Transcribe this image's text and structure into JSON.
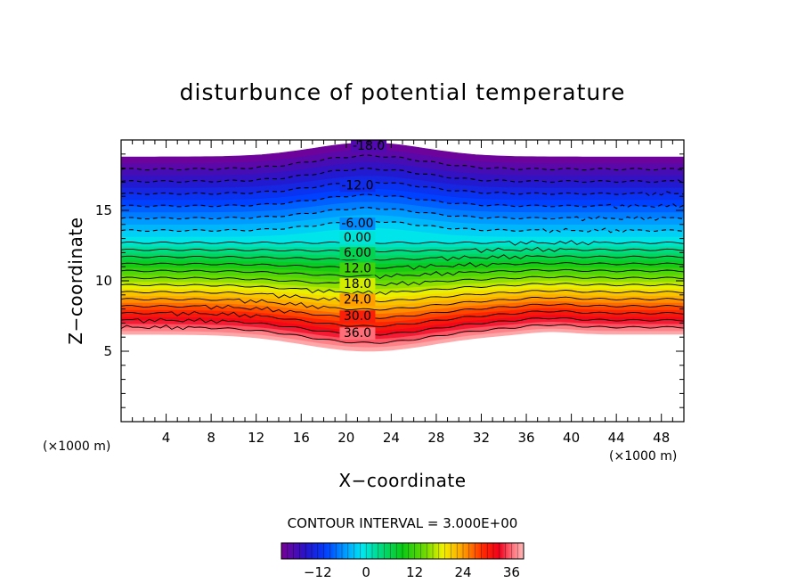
{
  "chart_data": {
    "type": "contour",
    "title": "disturbunce of potential temperature",
    "xlabel": "X−coordinate",
    "ylabel": "Z−coordinate",
    "x_unit_left": "(×1000 m)",
    "x_unit_right": "(×1000 m)",
    "xlim": [
      0,
      50
    ],
    "ylim": [
      0,
      20
    ],
    "x_ticks": [
      4,
      8,
      12,
      16,
      20,
      24,
      28,
      32,
      36,
      40,
      44,
      48
    ],
    "y_ticks": [
      5,
      10,
      15
    ],
    "contour_interval_text": "CONTOUR INTERVAL = 3.000E+00",
    "contour_interval": 3,
    "colorbar": {
      "min": -21,
      "max": 39,
      "ticks": [
        -12,
        0,
        12,
        24,
        36
      ],
      "tick_labels": [
        "−12",
        "0",
        "12",
        "24",
        "36"
      ],
      "colormap": "rainbow (purple→blue→cyan→green→yellow→red→pink)"
    },
    "contour_labels": [
      {
        "text": "-18.0",
        "value": -18,
        "x": 22,
        "y": 19.3
      },
      {
        "text": "-12.0",
        "value": -12,
        "x": 21,
        "y": 16.5
      },
      {
        "text": "-6.00",
        "value": -6,
        "x": 21,
        "y": 13.8
      },
      {
        "text": "0.00",
        "value": 0,
        "x": 21,
        "y": 12.8
      },
      {
        "text": "6.00",
        "value": 6,
        "x": 21,
        "y": 11.7
      },
      {
        "text": "12.0",
        "value": 12,
        "x": 21,
        "y": 10.6
      },
      {
        "text": "18.0",
        "value": 18,
        "x": 21,
        "y": 9.5
      },
      {
        "text": "24.0",
        "value": 24,
        "x": 21,
        "y": 8.4
      },
      {
        "text": "30.0",
        "value": 30,
        "x": 21,
        "y": 7.2
      },
      {
        "text": "36.0",
        "value": 36,
        "x": 21,
        "y": 6.0
      }
    ],
    "field_extent": {
      "bottom_edge_z_flat": 6.2,
      "bottom_edge_z_dip": 5.0,
      "top_edge_z_flat": 18.8,
      "top_edge_z_crest": 19.8
    }
  }
}
